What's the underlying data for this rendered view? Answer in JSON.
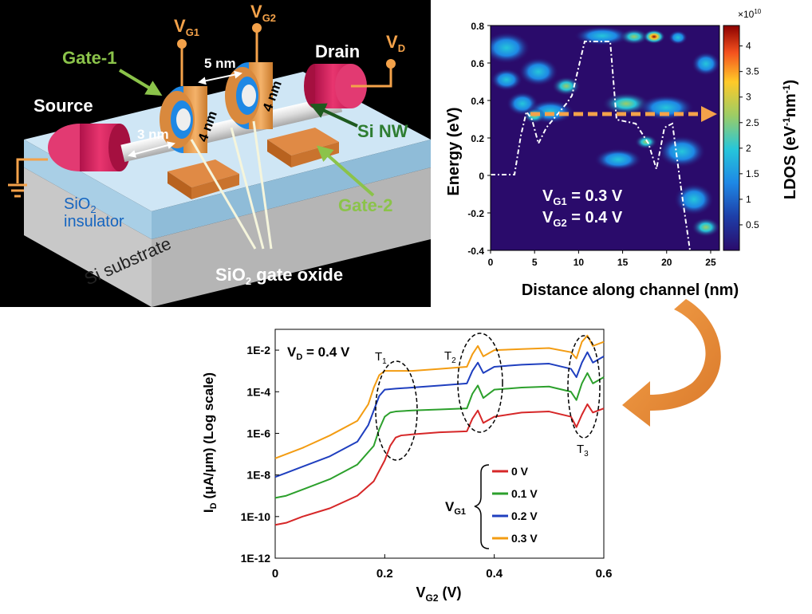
{
  "device": {
    "vg1": "V",
    "vg1_sub": "G1",
    "vg2": "V",
    "vg2_sub": "G2",
    "vd": "V",
    "vd_sub": "D",
    "gate1": "Gate-1",
    "gate2": "Gate-2",
    "source": "Source",
    "drain": "Drain",
    "dim_gap": "5 nm",
    "dim_src": "3 nm",
    "dim_g1": "4 nm",
    "dim_g2": "4 nm",
    "si_nw": "Si NW",
    "sio2_ins_a": "SiO",
    "sio2_ins_sub": "2",
    "sio2_ins_b": "insulator",
    "substrate": "Si substrate",
    "gate_oxide_a": "SiO",
    "gate_oxide_sub": "2",
    "gate_oxide_b": " gate oxide"
  },
  "ldos": {
    "ylabel": "Energy (eV)",
    "xlabel": "Distance along channel (nm)",
    "cbar_label_a": "LDOS (eV",
    "cbar_label_sup1": "-1",
    "cbar_label_b": "nm",
    "cbar_label_sup2": "-1",
    "cbar_label_c": ")",
    "cbar_exp": "×10",
    "cbar_exp_sup": "10",
    "ann1_a": "V",
    "ann1_sub": "G1",
    "ann1_b": " = 0.3 V",
    "ann2_a": "V",
    "ann2_sub": "G2",
    "ann2_b": " = 0.4 V",
    "xticks": [
      "0",
      "5",
      "10",
      "15",
      "20",
      "25"
    ],
    "yticks": [
      "0.8",
      "0.6",
      "0.4",
      "0.2",
      "0",
      "-0.2",
      "-0.4"
    ],
    "cticks": [
      "4",
      "3.5",
      "3",
      "2.5",
      "2",
      "1.5",
      "1",
      "0.5"
    ]
  },
  "chart_data": {
    "type": "line",
    "title": "",
    "ylabel_a": "I",
    "ylabel_sub": "D",
    "ylabel_b": " (μA/μm) (Log scale)",
    "xlabel_a": "V",
    "xlabel_sub": "G2",
    "xlabel_b": " (V)",
    "xlim": [
      0,
      0.6
    ],
    "ylim_log10": [
      -12,
      -1
    ],
    "xticks": [
      "0",
      "0.2",
      "0.4",
      "0.6"
    ],
    "yticks": [
      "1E-2",
      "1E-4",
      "1E-6",
      "1E-8",
      "1E-10",
      "1E-12"
    ],
    "vd_a": "V",
    "vd_sub": "D",
    "vd_b": " = 0.4 V",
    "t1": "T",
    "t1_sub": "1",
    "t2": "T",
    "t2_sub": "2",
    "t3": "T",
    "t3_sub": "3",
    "legend_title_a": "V",
    "legend_title_sub": "G1",
    "series": [
      {
        "name": "0 V",
        "color": "#d62728",
        "x": [
          0,
          0.02,
          0.05,
          0.1,
          0.15,
          0.18,
          0.2,
          0.21,
          0.22,
          0.23,
          0.25,
          0.3,
          0.35,
          0.36,
          0.37,
          0.38,
          0.4,
          0.45,
          0.5,
          0.54,
          0.55,
          0.56,
          0.57,
          0.58,
          0.6
        ],
        "log_y": [
          -10.4,
          -10.3,
          -10.0,
          -9.6,
          -9.0,
          -8.3,
          -7.3,
          -6.6,
          -6.2,
          -6.1,
          -6.05,
          -5.95,
          -5.9,
          -5.3,
          -4.9,
          -5.5,
          -5.2,
          -5.0,
          -4.95,
          -5.2,
          -5.7,
          -5.1,
          -4.6,
          -5.0,
          -4.8
        ]
      },
      {
        "name": "0.1 V",
        "color": "#2ca02c",
        "x": [
          0,
          0.02,
          0.05,
          0.1,
          0.15,
          0.18,
          0.19,
          0.2,
          0.21,
          0.22,
          0.25,
          0.3,
          0.35,
          0.36,
          0.37,
          0.38,
          0.4,
          0.45,
          0.5,
          0.54,
          0.55,
          0.56,
          0.57,
          0.58,
          0.6
        ],
        "log_y": [
          -9.1,
          -9.0,
          -8.7,
          -8.2,
          -7.5,
          -6.6,
          -5.8,
          -5.2,
          -5.0,
          -4.95,
          -4.9,
          -4.85,
          -4.8,
          -4.1,
          -3.7,
          -4.3,
          -3.9,
          -3.8,
          -3.75,
          -4.0,
          -4.4,
          -3.6,
          -3.1,
          -3.6,
          -3.3
        ]
      },
      {
        "name": "0.2 V",
        "color": "#1f3fbf",
        "x": [
          0,
          0.02,
          0.05,
          0.1,
          0.15,
          0.17,
          0.18,
          0.19,
          0.2,
          0.22,
          0.25,
          0.3,
          0.35,
          0.36,
          0.37,
          0.38,
          0.4,
          0.45,
          0.5,
          0.54,
          0.55,
          0.56,
          0.57,
          0.58,
          0.6
        ],
        "log_y": [
          -8.1,
          -7.9,
          -7.6,
          -7.1,
          -6.4,
          -5.6,
          -4.9,
          -4.2,
          -3.9,
          -3.85,
          -3.8,
          -3.7,
          -3.6,
          -3.0,
          -2.6,
          -3.1,
          -2.8,
          -2.7,
          -2.65,
          -2.9,
          -3.3,
          -2.6,
          -2.1,
          -2.6,
          -2.3
        ]
      },
      {
        "name": "0.3 V",
        "color": "#f39c12",
        "x": [
          0,
          0.02,
          0.05,
          0.1,
          0.15,
          0.17,
          0.18,
          0.19,
          0.2,
          0.22,
          0.25,
          0.3,
          0.35,
          0.36,
          0.37,
          0.38,
          0.4,
          0.45,
          0.5,
          0.54,
          0.55,
          0.56,
          0.57,
          0.58,
          0.6
        ],
        "log_y": [
          -7.2,
          -7.0,
          -6.7,
          -6.1,
          -5.4,
          -4.6,
          -3.8,
          -3.2,
          -3.0,
          -3.0,
          -3.0,
          -2.9,
          -2.8,
          -2.2,
          -1.8,
          -2.3,
          -2.0,
          -1.95,
          -1.9,
          -2.1,
          -2.4,
          -1.6,
          -1.3,
          -1.8,
          -1.6
        ]
      }
    ]
  }
}
